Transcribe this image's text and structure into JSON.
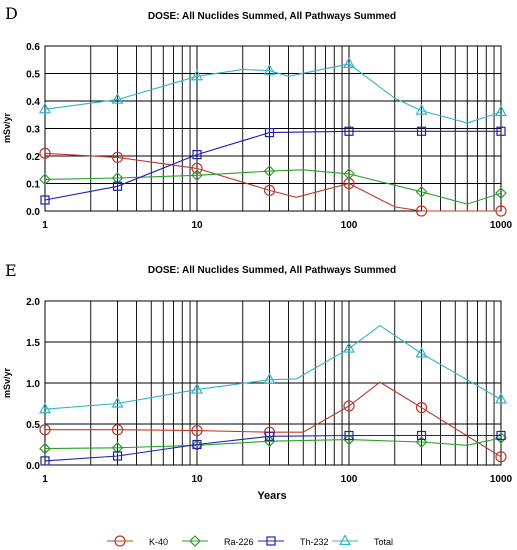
{
  "chart_data": [
    {
      "type": "line",
      "panel_label": "D",
      "title": "DOSE: All Nuclides Summed, All Pathways Summed",
      "xlabel": "",
      "ylabel": "mSv/yr",
      "xscale": "log",
      "xlim": [
        1,
        1000
      ],
      "ylim": [
        0,
        0.6
      ],
      "xticks": [
        1,
        10,
        100,
        1000
      ],
      "xtick_labels": [
        "1",
        "10",
        "100",
        "1000"
      ],
      "yticks": [
        0,
        0.1,
        0.2,
        0.3,
        0.4,
        0.5,
        0.6
      ],
      "ytick_labels": [
        "0.0",
        "0.1",
        "0.2",
        "0.3",
        "0.4",
        "0.5",
        "0.6"
      ],
      "grid": true,
      "series": [
        {
          "name": "K-40",
          "color": "#c0392b",
          "marker": "circle",
          "x": [
            1,
            3,
            10,
            30,
            45,
            100,
            200,
            300,
            1000
          ],
          "y": [
            0.21,
            0.195,
            0.155,
            0.075,
            0.05,
            0.1,
            0.015,
            0.0,
            0.0
          ],
          "marker_x": [
            1,
            3,
            10,
            30,
            100,
            300,
            1000
          ]
        },
        {
          "name": "Ra-226",
          "color": "#2ca02c",
          "marker": "diamond",
          "x": [
            1,
            3,
            10,
            30,
            50,
            100,
            300,
            600,
            1000
          ],
          "y": [
            0.115,
            0.12,
            0.13,
            0.145,
            0.15,
            0.135,
            0.07,
            0.025,
            0.065
          ],
          "marker_x": [
            1,
            3,
            10,
            30,
            100,
            300,
            1000
          ]
        },
        {
          "name": "Th-232",
          "color": "#2020b0",
          "marker": "square",
          "x": [
            1,
            3,
            10,
            30,
            100,
            300,
            1000
          ],
          "y": [
            0.04,
            0.09,
            0.205,
            0.285,
            0.29,
            0.29,
            0.29
          ],
          "marker_x": [
            1,
            3,
            10,
            30,
            100,
            300,
            1000
          ]
        },
        {
          "name": "Total",
          "color": "#33b5c8",
          "marker": "triangle",
          "x": [
            1,
            3,
            10,
            20,
            30,
            40,
            100,
            200,
            300,
            600,
            1000
          ],
          "y": [
            0.37,
            0.405,
            0.49,
            0.515,
            0.51,
            0.49,
            0.535,
            0.41,
            0.365,
            0.32,
            0.36
          ],
          "marker_x": [
            1,
            3,
            10,
            30,
            100,
            300,
            1000
          ]
        }
      ]
    },
    {
      "type": "line",
      "panel_label": "E",
      "title": "DOSE: All Nuclides Summed, All Pathways Summed",
      "xlabel": "Years",
      "ylabel": "mSv/yr",
      "xscale": "log",
      "xlim": [
        1,
        1000
      ],
      "ylim": [
        0,
        2.0
      ],
      "xticks": [
        1,
        10,
        100,
        1000
      ],
      "xtick_labels": [
        "1",
        "10",
        "100",
        "1000"
      ],
      "yticks": [
        0,
        0.5,
        1.0,
        1.5,
        2.0
      ],
      "ytick_labels": [
        "0.0",
        "0.5",
        "1.0",
        "1.5",
        "2.0"
      ],
      "grid": true,
      "series": [
        {
          "name": "K-40",
          "color": "#c0392b",
          "marker": "circle",
          "x": [
            1,
            3,
            10,
            30,
            50,
            100,
            160,
            300,
            1000
          ],
          "y": [
            0.43,
            0.43,
            0.42,
            0.4,
            0.4,
            0.72,
            1.01,
            0.7,
            0.1
          ],
          "marker_x": [
            1,
            3,
            10,
            30,
            100,
            300,
            1000
          ]
        },
        {
          "name": "Ra-226",
          "color": "#2ca02c",
          "marker": "diamond",
          "x": [
            1,
            3,
            10,
            30,
            100,
            300,
            600,
            1000
          ],
          "y": [
            0.2,
            0.21,
            0.24,
            0.29,
            0.31,
            0.28,
            0.24,
            0.33
          ],
          "marker_x": [
            1,
            3,
            10,
            30,
            100,
            300,
            1000
          ]
        },
        {
          "name": "Th-232",
          "color": "#2020b0",
          "marker": "square",
          "x": [
            1,
            3,
            10,
            30,
            100,
            300,
            1000
          ],
          "y": [
            0.05,
            0.11,
            0.25,
            0.35,
            0.36,
            0.36,
            0.36
          ],
          "marker_x": [
            1,
            3,
            10,
            30,
            100,
            300,
            1000
          ]
        },
        {
          "name": "Total",
          "color": "#33b5c8",
          "marker": "triangle",
          "x": [
            1,
            3,
            10,
            30,
            45,
            100,
            160,
            300,
            1000
          ],
          "y": [
            0.68,
            0.75,
            0.92,
            1.04,
            1.05,
            1.42,
            1.7,
            1.36,
            0.8
          ],
          "marker_x": [
            1,
            3,
            10,
            30,
            100,
            300,
            1000
          ]
        }
      ]
    }
  ],
  "legend": {
    "placement": "bottom",
    "items": [
      {
        "label": "K-40",
        "color": "#c0392b",
        "marker": "circle"
      },
      {
        "label": "Ra-226",
        "color": "#2ca02c",
        "marker": "diamond"
      },
      {
        "label": "Th-232",
        "color": "#2020b0",
        "marker": "square"
      },
      {
        "label": "Total",
        "color": "#33b5c8",
        "marker": "triangle"
      }
    ]
  }
}
